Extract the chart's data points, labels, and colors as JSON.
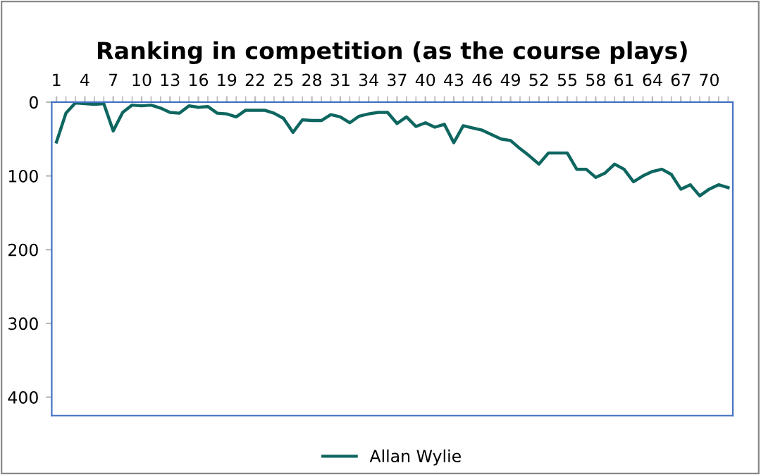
{
  "chart_data": {
    "type": "line",
    "title": "Ranking in competition (as the course plays)",
    "categories": [
      "1",
      null,
      null,
      "4",
      null,
      null,
      "7",
      null,
      null,
      "10",
      null,
      null,
      "13",
      null,
      null,
      "16",
      null,
      null,
      "19",
      null,
      null,
      "22",
      null,
      null,
      "25",
      null,
      null,
      "28",
      null,
      null,
      "31",
      null,
      null,
      "34",
      null,
      null,
      "37",
      null,
      null,
      "40",
      null,
      null,
      "43",
      null,
      null,
      "46",
      null,
      null,
      "49",
      null,
      null,
      "52",
      null,
      null,
      "55",
      null,
      null,
      "58",
      null,
      null,
      "61",
      null,
      null,
      "64",
      null,
      null,
      "67",
      null,
      null,
      "70",
      null,
      null
    ],
    "series": [
      {
        "name": "Allan Wylie",
        "color": "#0e6660",
        "values": [
          54,
          15,
          1,
          2,
          3,
          2,
          39,
          14,
          4,
          5,
          4,
          8,
          14,
          15,
          5,
          7,
          6,
          15,
          16,
          20,
          11,
          11,
          11,
          15,
          22,
          41,
          24,
          25,
          25,
          17,
          20,
          28,
          19,
          16,
          14,
          14,
          29,
          20,
          33,
          28,
          34,
          30,
          55,
          32,
          35,
          38,
          44,
          50,
          52,
          63,
          73,
          84,
          69,
          69,
          69,
          91,
          91,
          102,
          96,
          84,
          91,
          108,
          100,
          94,
          91,
          98,
          118,
          112,
          127,
          118,
          112,
          116
        ]
      }
    ],
    "ylim": [
      425,
      0
    ],
    "yticks": [
      0,
      100,
      200,
      300,
      400
    ],
    "grid": false,
    "legend": "bottom",
    "marker": "none",
    "line_style": "solid"
  }
}
